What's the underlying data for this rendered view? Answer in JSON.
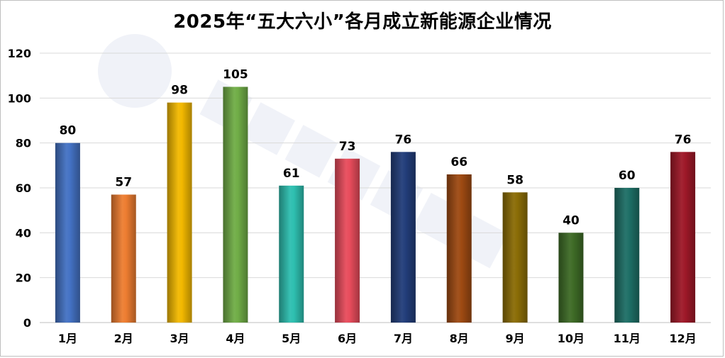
{
  "chart_data": {
    "type": "bar",
    "title": "2025年“五大六小”各月成立新能源企业情况",
    "categories": [
      "1月",
      "2月",
      "3月",
      "4月",
      "5月",
      "6月",
      "7月",
      "8月",
      "9月",
      "10月",
      "11月",
      "12月"
    ],
    "values": [
      80,
      57,
      98,
      105,
      61,
      73,
      76,
      66,
      58,
      40,
      60,
      76
    ],
    "colors": [
      "#4472c4",
      "#ed7d31",
      "#f2b800",
      "#70ad47",
      "#2ebfb0",
      "#e84c5c",
      "#223d7a",
      "#9e4a12",
      "#8a6c06",
      "#3e6b26",
      "#1e6f66",
      "#9e1828"
    ],
    "ylim": [
      0,
      120
    ],
    "yticks": [
      0,
      20,
      40,
      60,
      80,
      100,
      120
    ],
    "xlabel": "",
    "ylabel": "",
    "grid": true,
    "data_labels": true
  }
}
